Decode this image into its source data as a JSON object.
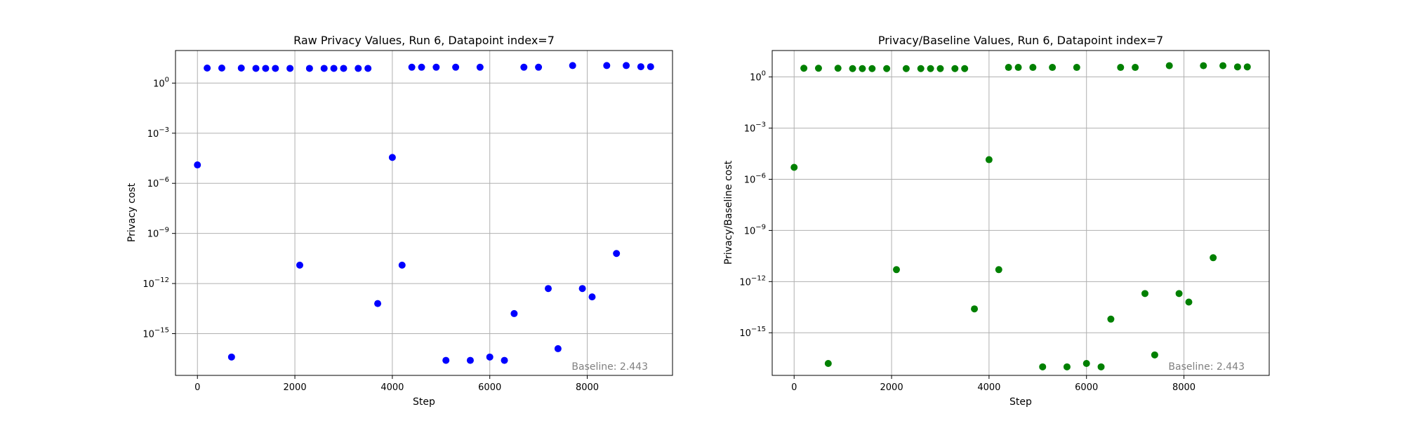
{
  "colors": {
    "panel1_marker": "#0000ff",
    "panel2_marker": "#008000",
    "grid": "#b0b0b0",
    "note": "#808080"
  },
  "chart_data": [
    {
      "type": "scatter",
      "title": "Raw Privacy Values, Run 6, Datapoint index=7",
      "xlabel": "Step",
      "ylabel": "Privacy cost",
      "yscale": "log",
      "grid": true,
      "xlim": [
        -450,
        9750
      ],
      "ylim_log10": [
        -17.5,
        1.95
      ],
      "x_ticks": [
        0,
        2000,
        4000,
        6000,
        8000
      ],
      "y_ticks_exp": [
        0,
        -3,
        -6,
        -9,
        -12,
        -15
      ],
      "annotation": "Baseline: 2.443",
      "series": [
        {
          "x": [
            0,
            200,
            500,
            700,
            900,
            1200,
            1400,
            1600,
            1900,
            2100,
            2300,
            2600,
            2800,
            3000,
            3300,
            3500,
            3700,
            4000,
            4200,
            4400,
            4600,
            4900,
            5100,
            5300,
            5600,
            5800,
            6000,
            6300,
            6500,
            6700,
            7000,
            7200,
            7400,
            7700,
            7900,
            8100,
            8400,
            8600,
            8800,
            9100,
            9300
          ],
          "y_log10": [
            -4.9,
            0.9,
            0.9,
            -16.4,
            0.9,
            0.88,
            0.88,
            0.88,
            0.88,
            -10.9,
            0.88,
            0.88,
            0.88,
            0.88,
            0.88,
            0.88,
            -13.2,
            -4.45,
            -10.9,
            0.95,
            0.95,
            0.95,
            -16.6,
            0.95,
            -16.6,
            0.95,
            -16.4,
            -16.6,
            -13.8,
            0.95,
            0.95,
            -12.3,
            -15.9,
            1.05,
            -12.3,
            -12.8,
            1.05,
            -10.2,
            1.05,
            0.98,
            0.98
          ]
        }
      ]
    },
    {
      "type": "scatter",
      "title": "Privacy/Baseline Values, Run 6, Datapoint index=7",
      "xlabel": "Step",
      "ylabel": "Privacy/Baseline cost",
      "yscale": "log",
      "grid": true,
      "xlim": [
        -450,
        9750
      ],
      "ylim_log10": [
        -17.5,
        1.55
      ],
      "x_ticks": [
        0,
        2000,
        4000,
        6000,
        8000
      ],
      "y_ticks_exp": [
        0,
        -3,
        -6,
        -9,
        -12,
        -15
      ],
      "annotation": "Baseline: 2.443",
      "series": [
        {
          "x": [
            0,
            200,
            500,
            700,
            900,
            1200,
            1400,
            1600,
            1900,
            2100,
            2300,
            2600,
            2800,
            3000,
            3300,
            3500,
            3700,
            4000,
            4200,
            4400,
            4600,
            4900,
            5100,
            5300,
            5600,
            5800,
            6000,
            6300,
            6500,
            6700,
            7000,
            7200,
            7400,
            7700,
            7900,
            8100,
            8400,
            8600,
            8800,
            9100,
            9300
          ],
          "y_log10": [
            -5.3,
            0.51,
            0.51,
            -16.8,
            0.51,
            0.49,
            0.49,
            0.49,
            0.49,
            -11.3,
            0.49,
            0.49,
            0.49,
            0.49,
            0.49,
            0.49,
            -13.6,
            -4.85,
            -11.3,
            0.56,
            0.56,
            0.56,
            -17.0,
            0.56,
            -17.0,
            0.56,
            -16.8,
            -17.0,
            -14.2,
            0.56,
            0.56,
            -12.7,
            -16.3,
            0.66,
            -12.7,
            -13.2,
            0.66,
            -10.6,
            0.66,
            0.59,
            0.59
          ]
        }
      ]
    }
  ]
}
